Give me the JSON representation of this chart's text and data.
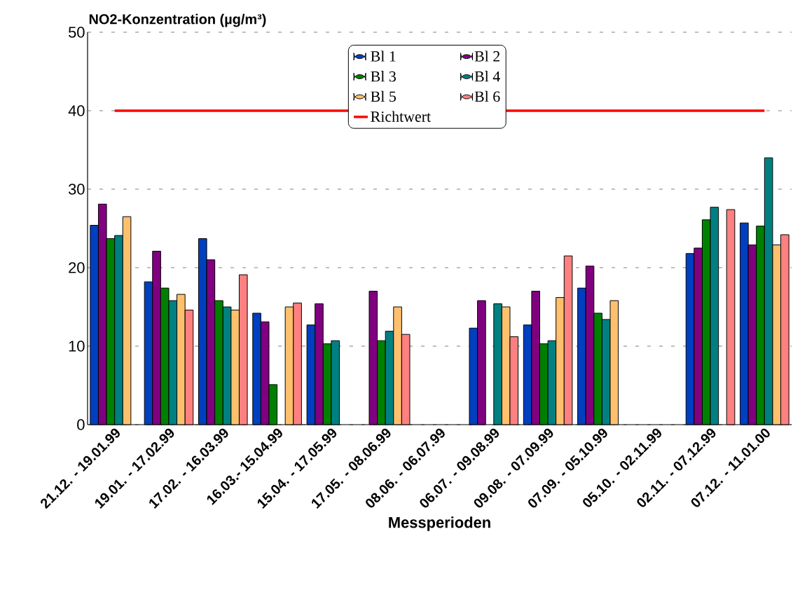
{
  "chart_data": {
    "type": "bar",
    "ylabel": "NO2-Konzentration (µg/m³)",
    "xlabel": "Messperioden",
    "categories": [
      "21.12. - 19.01.99",
      "19.01. - 17.02.99",
      "17.02. - 16.03.99",
      "16.03.- 15.04.99",
      "15.04. - 17.05.99",
      "17.05. - 08.06.99",
      "08.06. - 06.07.99",
      "06.07. - 09.08.99",
      "09.08. - 07.09.99",
      "07.09. - 05.10.99",
      "05.10. - 02.11.99",
      "02.11. - 07.12.99",
      "07.12. - 11.01.00"
    ],
    "series": [
      {
        "name": "Bl 1",
        "color": "#003fbf",
        "values": [
          25.4,
          18.2,
          23.7,
          14.2,
          12.7,
          null,
          null,
          12.3,
          12.7,
          17.4,
          null,
          21.8,
          25.7
        ]
      },
      {
        "name": "Bl 2",
        "color": "#800080",
        "values": [
          28.1,
          22.1,
          21.0,
          13.1,
          15.4,
          17.0,
          null,
          15.8,
          17.0,
          20.2,
          null,
          22.5,
          22.9
        ]
      },
      {
        "name": "Bl 3",
        "color": "#008000",
        "values": [
          23.7,
          17.4,
          15.8,
          5.1,
          10.3,
          10.7,
          null,
          null,
          10.3,
          14.2,
          null,
          26.1,
          25.3
        ]
      },
      {
        "name": "Bl 4",
        "color": "#008080",
        "values": [
          24.1,
          15.8,
          15.0,
          null,
          10.7,
          11.9,
          null,
          15.4,
          10.7,
          13.4,
          null,
          27.7,
          34.0
        ]
      },
      {
        "name": "Bl 5",
        "color": "#ffc06e",
        "values": [
          26.5,
          16.6,
          14.6,
          15.0,
          null,
          15.0,
          null,
          15.0,
          16.2,
          15.8,
          null,
          null,
          22.9
        ]
      },
      {
        "name": "Bl 6",
        "color": "#ff8080",
        "values": [
          null,
          14.6,
          19.1,
          15.5,
          null,
          11.5,
          null,
          11.2,
          21.5,
          null,
          null,
          27.4,
          24.2
        ]
      }
    ],
    "ref_lines": [
      {
        "axis": "y",
        "value": 40,
        "label": "Richtwert",
        "color": "#ff0000"
      }
    ],
    "ylim": [
      0,
      50
    ],
    "yticks": [
      0,
      10,
      20,
      30,
      40,
      50
    ],
    "grid": "y",
    "legend": "top"
  }
}
